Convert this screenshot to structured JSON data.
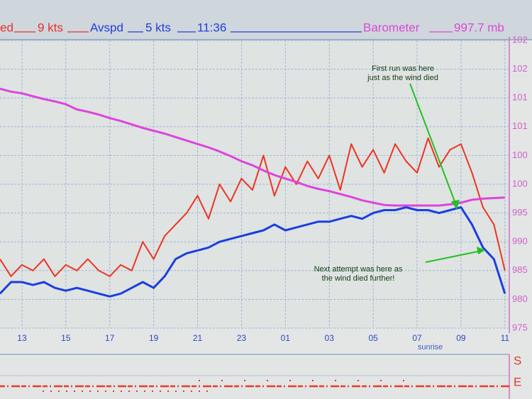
{
  "header": {
    "items": [
      {
        "text": "ed",
        "color": "#e8302a"
      },
      {
        "text": "9 kts",
        "color": "#e8302a"
      },
      {
        "text": "Avspd",
        "color": "#2040d8"
      },
      {
        "text": "5 kts",
        "color": "#2040d8"
      },
      {
        "text": "11:36",
        "color": "#2040d8"
      },
      {
        "text": "Barometer",
        "color": "#d84ad8"
      },
      {
        "text": "997.7 mb",
        "color": "#d84ad8"
      }
    ]
  },
  "chart_data": {
    "type": "line",
    "x": [
      12,
      12.5,
      13,
      13.5,
      14,
      14.5,
      15,
      15.5,
      16,
      16.5,
      17,
      17.5,
      18,
      18.5,
      19,
      19.5,
      20,
      20.5,
      21,
      21.5,
      22,
      22.5,
      23,
      23.5,
      24,
      24.5,
      25,
      25.5,
      26,
      26.5,
      27,
      27.5,
      28,
      28.5,
      29,
      29.5,
      30,
      30.5,
      31,
      31.5,
      32,
      32.5,
      33,
      33.5,
      34,
      34.5,
      35
    ],
    "xlim": [
      12,
      35.2
    ],
    "xticks": [
      13,
      15,
      17,
      19,
      21,
      23,
      {
        "value": 25,
        "label": "01"
      },
      {
        "value": 27,
        "label": "03"
      },
      {
        "value": 29,
        "label": "05"
      },
      {
        "value": 31,
        "label": "07"
      },
      {
        "value": 33,
        "label": "09"
      },
      {
        "value": 35,
        "label": "11"
      }
    ],
    "ylim": [
      975,
      1025
    ],
    "yticks": [
      {
        "value": 1025,
        "label": "102"
      },
      {
        "value": 1020,
        "label": "102"
      },
      {
        "value": 1015,
        "label": "101"
      },
      {
        "value": 1010,
        "label": "101"
      },
      {
        "value": 1005,
        "label": "100"
      },
      {
        "value": 1000,
        "label": "100"
      },
      995,
      990,
      985,
      980,
      975
    ],
    "grid": true,
    "series": [
      {
        "color": "#ee3322",
        "values": [
          987,
          984,
          986,
          985,
          987,
          984,
          986,
          985,
          987,
          985,
          984,
          986,
          985,
          990,
          987,
          991,
          993,
          995,
          998,
          994,
          1000,
          997,
          1001,
          999,
          1005,
          998,
          1003,
          1000,
          1004,
          1001,
          1005,
          999,
          1007,
          1003,
          1006,
          1002,
          1007,
          1004,
          1002,
          1008,
          1003,
          1006,
          1007,
          1002,
          996,
          993,
          985
        ]
      },
      {
        "color": "#1a3ee0",
        "values": [
          981,
          983,
          983,
          982.5,
          983,
          982,
          981.5,
          982,
          981.5,
          981,
          980.5,
          981,
          982,
          983,
          982,
          984,
          987,
          988,
          988.5,
          989,
          990,
          990.5,
          991,
          991.5,
          992,
          993,
          992,
          992.5,
          993,
          993.5,
          993.5,
          994,
          994.5,
          994,
          995,
          995.5,
          995.5,
          996,
          995.5,
          995.5,
          995,
          995.5,
          996,
          993,
          989,
          987,
          981
        ]
      },
      {
        "color": "#dd44dd",
        "values": [
          1016.6,
          1016.1,
          1015.8,
          1015.3,
          1014.8,
          1014.4,
          1013.9,
          1013.0,
          1012.6,
          1012.1,
          1011.5,
          1011.0,
          1010.4,
          1009.8,
          1009.3,
          1008.8,
          1008.2,
          1007.6,
          1007.0,
          1006.4,
          1005.7,
          1004.9,
          1004.0,
          1003.3,
          1002.4,
          1001.6,
          1001.0,
          1000.4,
          999.7,
          999.2,
          998.8,
          998.3,
          997.8,
          997.2,
          996.8,
          996.4,
          996.3,
          996.3,
          996.3,
          996.3,
          996.3,
          996.5,
          996.8,
          997.3,
          997.5,
          997.6,
          997.7
        ]
      }
    ],
    "annotations": [
      [
        "First run was here",
        "just as the wind died"
      ],
      [
        "Next attempt was here as",
        "the wind died further!"
      ]
    ],
    "sunrise": "sunrise"
  },
  "strip": {
    "labels": [
      "S",
      "E"
    ]
  }
}
